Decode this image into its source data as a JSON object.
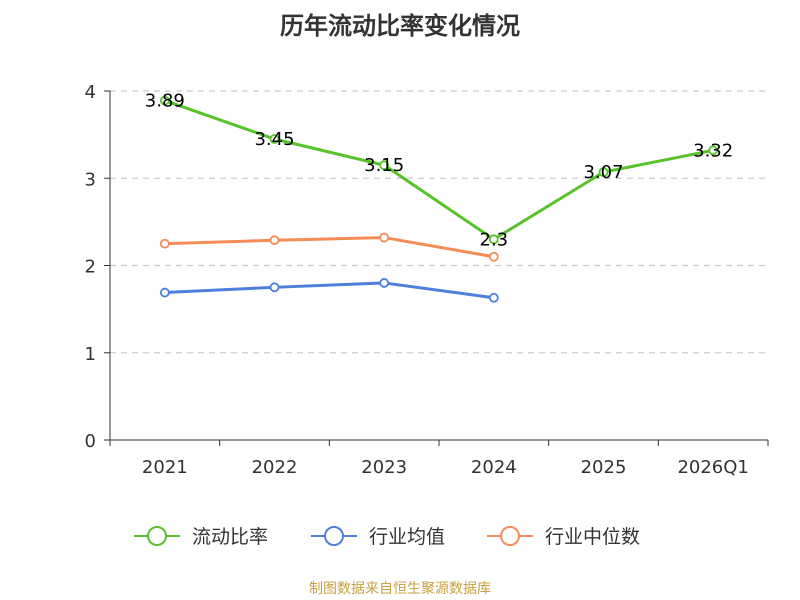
{
  "chart_data": {
    "type": "line",
    "title": "历年流动比率变化情况",
    "categories": [
      "2021",
      "2022",
      "2023",
      "2024",
      "2025",
      "2026Q1"
    ],
    "ylim": [
      0,
      4
    ],
    "yticks": [
      0,
      1,
      2,
      3,
      4
    ],
    "xlabel": "",
    "ylabel": "",
    "grid": true,
    "legend_position": "bottom",
    "series": [
      {
        "name": "流动比率",
        "color": "#58c22a",
        "values": [
          3.89,
          3.45,
          3.15,
          2.3,
          3.07,
          3.32
        ],
        "labels": [
          "3.89",
          "3.45",
          "3.15",
          "2.3",
          "3.07",
          "3.32"
        ],
        "show_labels": true
      },
      {
        "name": "行业均值",
        "color": "#4e7fdb",
        "values": [
          1.69,
          1.75,
          1.8,
          1.63,
          null,
          null
        ],
        "show_labels": false
      },
      {
        "name": "行业中位数",
        "color": "#f58b57",
        "values": [
          2.25,
          2.29,
          2.32,
          2.1,
          null,
          null
        ],
        "show_labels": false
      }
    ]
  },
  "footer": {
    "source": "制图数据来自恒生聚源数据库"
  }
}
